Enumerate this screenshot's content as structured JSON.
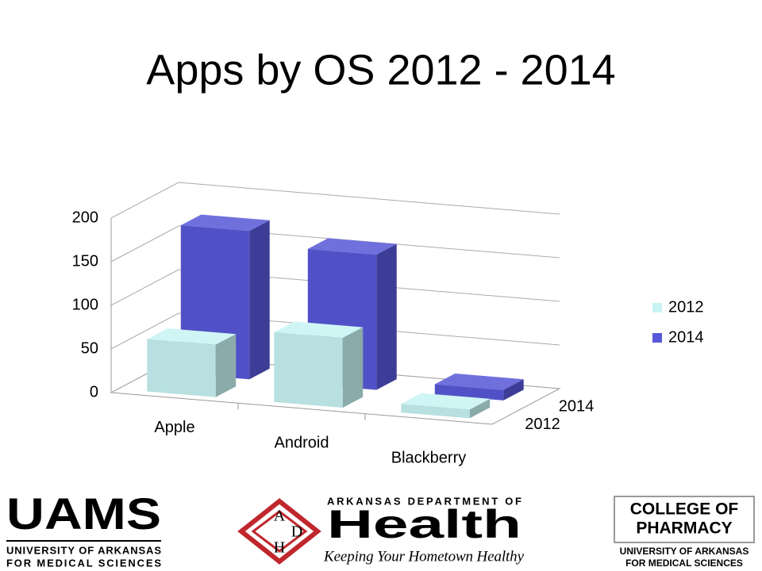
{
  "chart_data": {
    "type": "bar3d",
    "title": "Apps by OS 2012 - 2014",
    "categories": [
      "Apple",
      "Android",
      "Blackberry"
    ],
    "series": [
      {
        "name": "2012",
        "color": "#c8f4f4",
        "values": [
          60,
          80,
          10
        ]
      },
      {
        "name": "2014",
        "color": "#5858d8",
        "values": [
          170,
          155,
          12
        ]
      }
    ],
    "ylim": [
      0,
      200
    ],
    "yticks": [
      0,
      50,
      100,
      150,
      200
    ],
    "grid": true,
    "legend": "right"
  },
  "footer": {
    "left": {
      "name": "UAMS",
      "line1": "UNIVERSITY OF ARKANSAS",
      "line2": "FOR MEDICAL SCIENCES"
    },
    "center": {
      "letters": [
        "A",
        "D",
        "H"
      ],
      "top": "ARKANSAS DEPARTMENT OF",
      "name": "Health",
      "tagline": "Keeping Your Hometown Healthy"
    },
    "right": {
      "line1": "COLLEGE OF",
      "line2": "PHARMACY",
      "line3": "UNIVERSITY OF ARKANSAS",
      "line4": "FOR MEDICAL SCIENCES"
    }
  }
}
